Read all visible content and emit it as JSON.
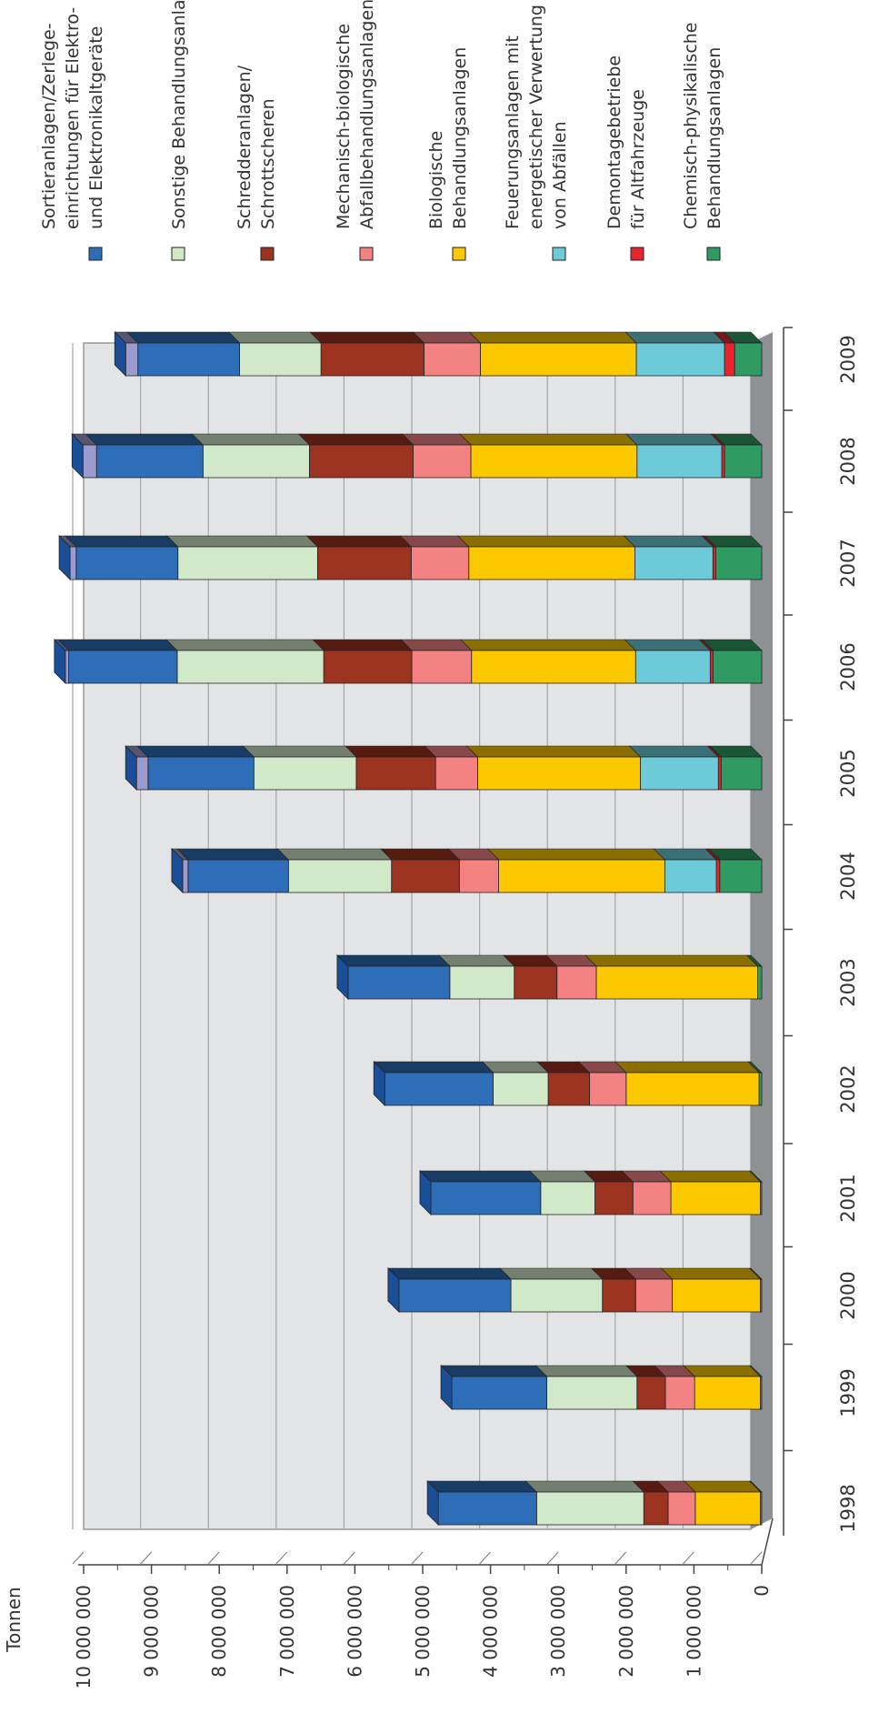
{
  "chart_data": {
    "type": "bar",
    "stacked": true,
    "orientation": "horizontal, page rotated 90°",
    "unit_label": "Tonnen",
    "ylim": [
      0,
      10000000
    ],
    "y_ticks": [
      "0",
      "1 000 000",
      "2 000 000",
      "3 000 000",
      "4 000 000",
      "5 000 000",
      "6 000 000",
      "7 000 000",
      "8 000 000",
      "9 000 000",
      "10 000 000"
    ],
    "y_tick_values": [
      0,
      1000000,
      2000000,
      3000000,
      4000000,
      5000000,
      6000000,
      7000000,
      8000000,
      9000000,
      10000000
    ],
    "grid": true,
    "legend_position": "right (top of the page)",
    "categories": [
      "1998",
      "1999",
      "2000",
      "2001",
      "2002",
      "2003",
      "2004",
      "2005",
      "2006",
      "2007",
      "2008",
      "2009"
    ],
    "series": [
      {
        "key": "chemphys",
        "name": "Chemisch-physikalische Behandlungsanlagen",
        "legend_lines": [
          "Chemisch-physikalische",
          "Behandlungsanlagen"
        ],
        "color": "#2f9b63",
        "values": [
          20000,
          20000,
          20000,
          20000,
          40000,
          60000,
          620000,
          600000,
          720000,
          680000,
          550000,
          400000
        ]
      },
      {
        "key": "demont",
        "name": "Demontagebetriebe für Altfahrzeuge",
        "legend_lines": [
          "Demontagebetriebe",
          "für Altfahrzeuge"
        ],
        "color": "#e5262e",
        "values": [
          0,
          0,
          0,
          0,
          0,
          0,
          50000,
          40000,
          40000,
          40000,
          40000,
          150000
        ]
      },
      {
        "key": "feuer",
        "name": "Feuerungsanlagen mit energetischer Verwertung von Abfällen",
        "legend_lines": [
          "Feuerungsanlagen mit",
          "energetischer Verwertung",
          "von Abfällen"
        ],
        "color": "#6dcbd9",
        "values": [
          0,
          0,
          0,
          0,
          0,
          0,
          760000,
          1150000,
          1100000,
          1150000,
          1250000,
          1300000
        ]
      },
      {
        "key": "bio",
        "name": "Biologische Behandlungsanlagen",
        "legend_lines": [
          "Biologische",
          "Behandlungsanlagen"
        ],
        "color": "#fcc800",
        "values": [
          960000,
          970000,
          1300000,
          1320000,
          1960000,
          2380000,
          2450000,
          2400000,
          2420000,
          2450000,
          2450000,
          2300000
        ]
      },
      {
        "key": "mba",
        "name": "Mechanisch-biologische Abfallbehandlungsanlagen",
        "legend_lines": [
          "Mechanisch-biologische",
          "Abfallbehandlungsanlagen"
        ],
        "color": "#f48283",
        "values": [
          400000,
          430000,
          540000,
          560000,
          540000,
          580000,
          580000,
          620000,
          880000,
          850000,
          850000,
          830000
        ]
      },
      {
        "key": "schredder",
        "name": "Schredderanlagen/ Schrottscheren",
        "legend_lines": [
          "Schredderanlagen/",
          "Schrottscheren"
        ],
        "color": "#9c3320",
        "values": [
          360000,
          420000,
          490000,
          560000,
          610000,
          630000,
          1000000,
          1170000,
          1300000,
          1380000,
          1530000,
          1520000
        ]
      },
      {
        "key": "sonstige",
        "name": "Sonstige Behandlungsanlagen",
        "legend_lines": [
          "Sonstige Behandlungsanlagen"
        ],
        "color": "#d2e9c9",
        "values": [
          1580000,
          1330000,
          1350000,
          800000,
          810000,
          950000,
          1520000,
          1510000,
          2160000,
          2060000,
          1570000,
          1200000
        ]
      },
      {
        "key": "sortier",
        "name": "Sortieranlagen/Zerlegeeinrichtungen für Elektro- und Elektronikaltgeräte",
        "legend_lines": [
          "Sortieranlagen/Zerlege-",
          "einrichtungen für Elektro-",
          "und Elektronikaltgeräte"
        ],
        "color": "#2e6db8",
        "values": [
          1450000,
          1400000,
          1650000,
          1620000,
          1600000,
          1500000,
          1480000,
          1560000,
          1600000,
          1500000,
          1570000,
          1500000
        ]
      },
      {
        "key": "lavender",
        "name": "",
        "legend_lines": [],
        "color": "#9b9bd0",
        "values": [
          0,
          0,
          0,
          0,
          0,
          0,
          80000,
          170000,
          50000,
          90000,
          200000,
          180000
        ]
      }
    ],
    "legend_order": [
      "sortier",
      "sonstige",
      "schredder",
      "mba",
      "bio",
      "feuer",
      "demont",
      "chemphys"
    ]
  }
}
